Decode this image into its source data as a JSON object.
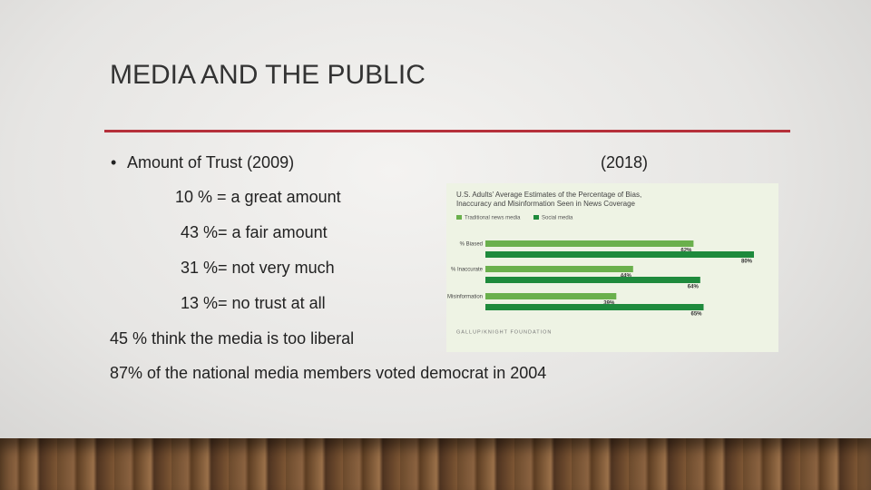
{
  "title": "MEDIA AND THE PUBLIC",
  "bullet": "Amount of Trust (2009)",
  "chart_year": "(2018)",
  "trust_items": [
    "10 % = a great amount",
    "43 %= a fair amount",
    "31 %= not very much",
    "13 %= no trust at all"
  ],
  "statements": [
    "45 % think the media is too liberal",
    "87% of the national media members voted democrat in 2004"
  ],
  "chart_data": {
    "type": "barh",
    "title": "U.S. Adults' Average Estimates of the Percentage of Bias, Inaccuracy and Misinformation Seen in News Coverage",
    "source": "GALLUP/KNIGHT FOUNDATION",
    "categories": [
      "% Biased",
      "% Inaccurate",
      "% Misinformation"
    ],
    "series": [
      {
        "name": "Traditional news media",
        "color": "#6ab04c",
        "values": [
          62,
          44,
          39
        ],
        "value_labels": [
          "62%",
          "44%",
          "39%"
        ]
      },
      {
        "name": "Social media",
        "color": "#1e8a3c",
        "values": [
          80,
          64,
          65
        ],
        "value_labels": [
          "80%",
          "64%",
          "65%"
        ]
      }
    ]
  }
}
